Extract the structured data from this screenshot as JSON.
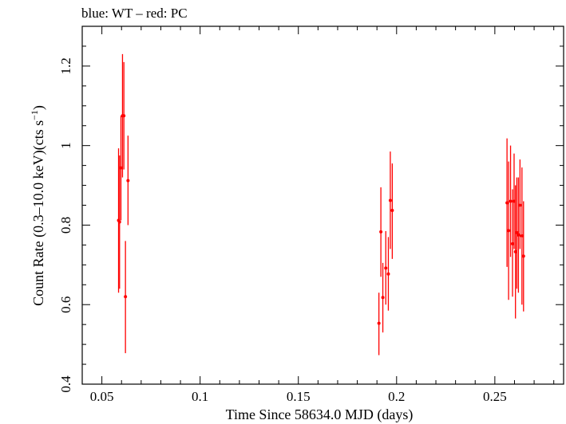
{
  "chart_data": {
    "type": "scatter",
    "title": "blue: WT – red: PC",
    "xlabel": "Time Since 58634.0 MJD (days)",
    "ylabel_main": "Count Rate (0.3–10.0 keV)(cts s",
    "ylabel_sup": "−1",
    "ylabel_close": ")",
    "xlim": [
      0.04,
      0.285
    ],
    "ylim": [
      0.4,
      1.3
    ],
    "x_ticks": [
      0.05,
      0.1,
      0.15,
      0.2,
      0.25
    ],
    "x_tick_labels": [
      "0.05",
      "0.1",
      "0.15",
      "0.2",
      "0.25"
    ],
    "y_ticks": [
      0.4,
      0.6,
      0.8,
      1.0,
      1.2
    ],
    "y_tick_labels": [
      "0.4",
      "0.6",
      "0.8",
      "1",
      "1.2"
    ],
    "grid": false,
    "series": [
      {
        "color": "#ff0000",
        "points": [
          {
            "x": 0.0585,
            "y": 0.812,
            "ylo": 0.63,
            "yhi": 0.993
          },
          {
            "x": 0.059,
            "y": 0.808,
            "ylo": 0.64,
            "yhi": 0.975
          },
          {
            "x": 0.0597,
            "y": 0.944,
            "ylo": 0.812,
            "yhi": 1.075
          },
          {
            "x": 0.0605,
            "y": 1.075,
            "ylo": 0.92,
            "yhi": 1.23
          },
          {
            "x": 0.0612,
            "y": 1.075,
            "ylo": 0.94,
            "yhi": 1.21
          },
          {
            "x": 0.062,
            "y": 0.62,
            "ylo": 0.478,
            "yhi": 0.76
          },
          {
            "x": 0.0633,
            "y": 0.912,
            "ylo": 0.8,
            "yhi": 1.025
          },
          {
            "x": 0.191,
            "y": 0.553,
            "ylo": 0.473,
            "yhi": 0.63
          },
          {
            "x": 0.192,
            "y": 0.783,
            "ylo": 0.67,
            "yhi": 0.895
          },
          {
            "x": 0.193,
            "y": 0.618,
            "ylo": 0.53,
            "yhi": 0.705
          },
          {
            "x": 0.1945,
            "y": 0.692,
            "ylo": 0.6,
            "yhi": 0.785
          },
          {
            "x": 0.1958,
            "y": 0.677,
            "ylo": 0.585,
            "yhi": 0.77
          },
          {
            "x": 0.1968,
            "y": 0.862,
            "ylo": 0.74,
            "yhi": 0.985
          },
          {
            "x": 0.1978,
            "y": 0.837,
            "ylo": 0.715,
            "yhi": 0.955
          },
          {
            "x": 0.2562,
            "y": 0.856,
            "ylo": 0.695,
            "yhi": 1.018
          },
          {
            "x": 0.257,
            "y": 0.786,
            "ylo": 0.612,
            "yhi": 0.96
          },
          {
            "x": 0.258,
            "y": 0.86,
            "ylo": 0.72,
            "yhi": 1.0
          },
          {
            "x": 0.259,
            "y": 0.753,
            "ylo": 0.62,
            "yhi": 0.89
          },
          {
            "x": 0.2598,
            "y": 0.86,
            "ylo": 0.74,
            "yhi": 0.98
          },
          {
            "x": 0.2605,
            "y": 0.733,
            "ylo": 0.565,
            "yhi": 0.9
          },
          {
            "x": 0.2612,
            "y": 0.781,
            "ylo": 0.64,
            "yhi": 0.92
          },
          {
            "x": 0.262,
            "y": 0.775,
            "ylo": 0.63,
            "yhi": 0.92
          },
          {
            "x": 0.2628,
            "y": 0.85,
            "ylo": 0.74,
            "yhi": 0.965
          },
          {
            "x": 0.2638,
            "y": 0.773,
            "ylo": 0.6,
            "yhi": 0.945
          },
          {
            "x": 0.2646,
            "y": 0.722,
            "ylo": 0.583,
            "yhi": 0.86
          }
        ]
      }
    ]
  }
}
